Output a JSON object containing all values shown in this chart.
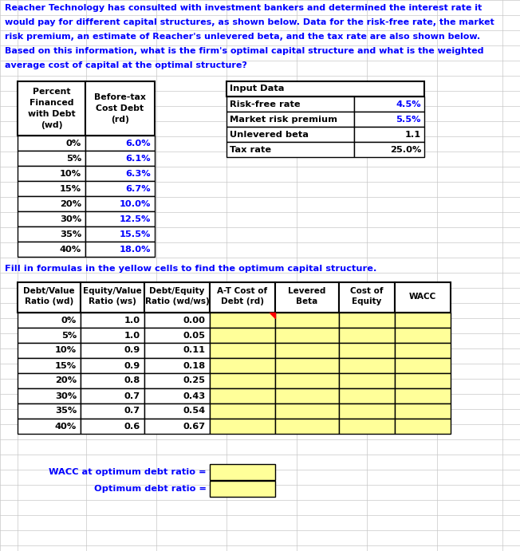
{
  "intro_lines": [
    "Reacher Technology has consulted with investment bankers and determined the interest rate it",
    "would pay for different capital structures, as shown below. Data for the risk-free rate, the market",
    "risk premium, an estimate of Reacher's unlevered beta, and the tax rate are also shown below.",
    "Based on this information, what is the firm's optimal capital structure and what is the weighted",
    "average cost of capital at the optimal structure?"
  ],
  "table1_header_lines": [
    [
      "Percent",
      "Financed",
      "with Debt",
      "(wd)"
    ],
    [
      "Before-tax",
      "Cost Debt",
      "(rd)"
    ]
  ],
  "table1_rows": [
    [
      "0%",
      "6.0%"
    ],
    [
      "5%",
      "6.1%"
    ],
    [
      "10%",
      "6.3%"
    ],
    [
      "15%",
      "6.7%"
    ],
    [
      "20%",
      "10.0%"
    ],
    [
      "30%",
      "12.5%"
    ],
    [
      "35%",
      "15.5%"
    ],
    [
      "40%",
      "18.0%"
    ]
  ],
  "input_header": "Input Data",
  "input_rows": [
    [
      "Risk-free rate",
      "4.5%"
    ],
    [
      "Market risk premium",
      "5.5%"
    ],
    [
      "Unlevered beta",
      "1.1"
    ],
    [
      "Tax rate",
      "25.0%"
    ]
  ],
  "fill_text": "Fill in formulas in the yellow cells to find the optimum capital structure.",
  "table2_col_headers": [
    [
      "Debt/Value",
      "Ratio (wd)"
    ],
    [
      "Equity/Value",
      "Ratio (ws)"
    ],
    [
      "Debt/Equity",
      "Ratio (wd/ws)"
    ],
    [
      "A-T Cost of",
      "Debt (rd)"
    ],
    [
      "Levered",
      "Beta"
    ],
    [
      "Cost of",
      "Equity"
    ],
    [
      "WACC"
    ]
  ],
  "table2_col1": [
    "0%",
    "5%",
    "10%",
    "15%",
    "20%",
    "30%",
    "35%",
    "40%"
  ],
  "table2_col2": [
    "1.0",
    "1.0",
    "0.9",
    "0.9",
    "0.8",
    "0.7",
    "0.7",
    "0.6"
  ],
  "table2_col3": [
    "0.00",
    "0.05",
    "0.11",
    "0.18",
    "0.25",
    "0.43",
    "0.54",
    "0.67"
  ],
  "wacc_label": "WACC at optimum debt ratio =",
  "opt_label": "Optimum debt ratio =",
  "blue": "#0000FF",
  "black": "#000000",
  "yellow": "#FFFF99",
  "white": "#FFFFFF",
  "grid_color": "#C8C8C8"
}
